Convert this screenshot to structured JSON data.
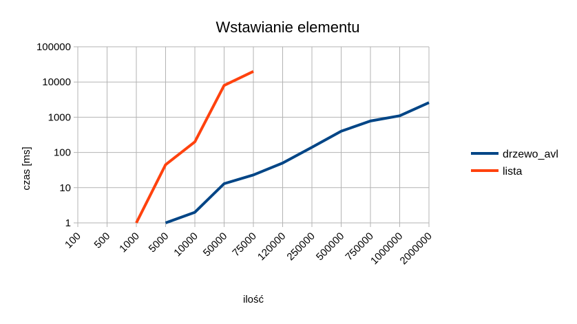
{
  "chart_data": {
    "type": "line",
    "title": "Wstawianie elementu",
    "xlabel": "ilość",
    "ylabel": "czas [ms]",
    "categories": [
      "100",
      "500",
      "1000",
      "5000",
      "10000",
      "50000",
      "75000",
      "120000",
      "250000",
      "500000",
      "750000",
      "1000000",
      "2000000"
    ],
    "y_scale": "log",
    "ylim": [
      1,
      100000
    ],
    "y_ticks": [
      "1",
      "10",
      "100",
      "1000",
      "10000",
      "100000"
    ],
    "grid": true,
    "legend_position": "right",
    "series": [
      {
        "name": "drzewo_avl",
        "color": "#004586",
        "values": [
          null,
          null,
          null,
          1,
          2,
          13,
          23,
          50,
          140,
          400,
          780,
          1100,
          2600
        ]
      },
      {
        "name": "lista",
        "color": "#ff420e",
        "values": [
          null,
          null,
          1,
          45,
          200,
          8000,
          20000,
          null,
          null,
          null,
          null,
          null,
          null
        ]
      }
    ]
  }
}
